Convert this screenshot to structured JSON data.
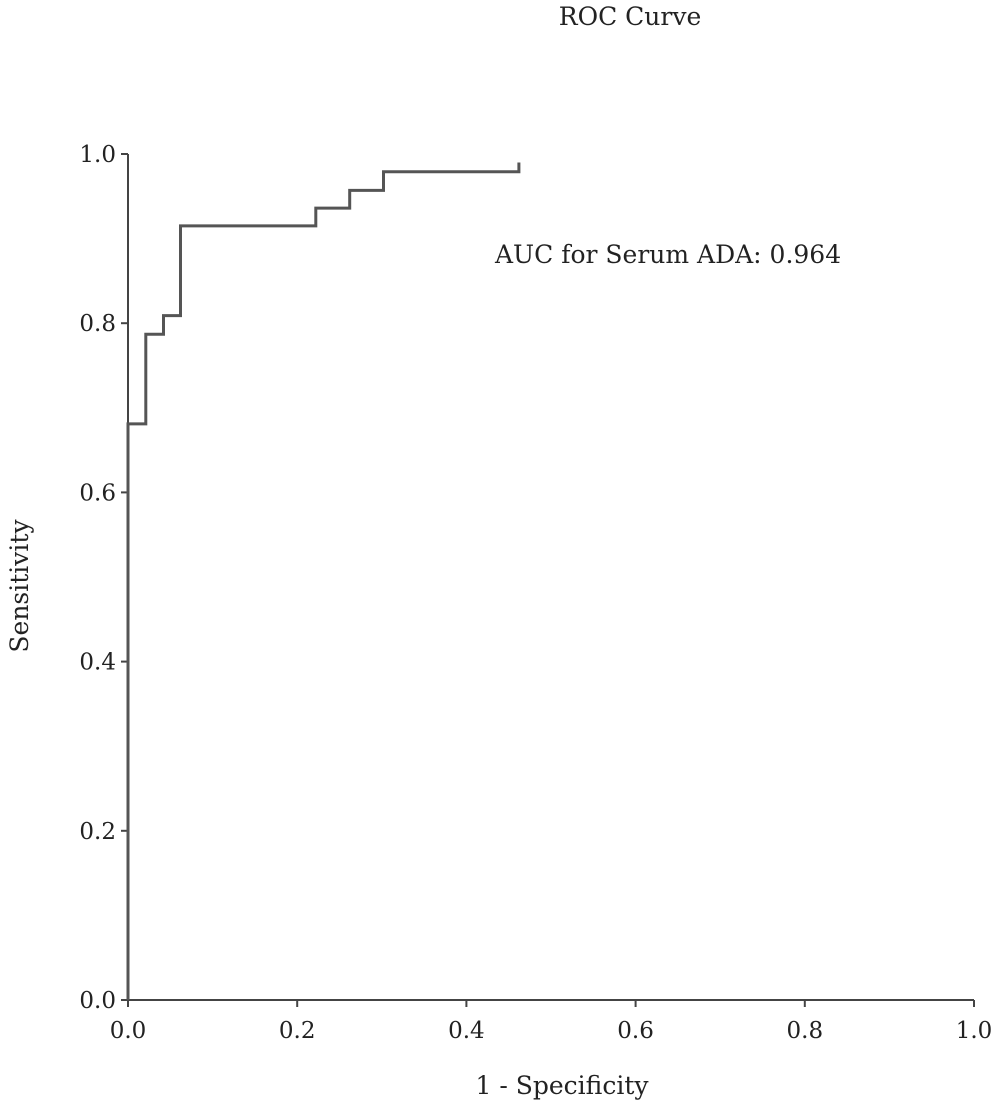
{
  "chart_data": {
    "type": "line",
    "title": "ROC Curve",
    "xlabel": "1 - Specificity",
    "ylabel": "Sensitivity",
    "xlim": [
      0,
      1
    ],
    "ylim": [
      0,
      1
    ],
    "x_ticks": [
      "0.0",
      "0.2",
      "0.4",
      "0.6",
      "0.8",
      "1.0"
    ],
    "y_ticks": [
      "0.0",
      "0.2",
      "0.4",
      "0.6",
      "0.8",
      "1.0"
    ],
    "grid": false,
    "legend": "none",
    "annotation": "AUC for Serum ADA: 0.964",
    "series": [
      {
        "step": true,
        "color": "#555555",
        "points": [
          [
            0.0,
            0.0
          ],
          [
            0.0,
            0.681
          ],
          [
            0.021,
            0.681
          ],
          [
            0.021,
            0.787
          ],
          [
            0.042,
            0.787
          ],
          [
            0.042,
            0.809
          ],
          [
            0.062,
            0.809
          ],
          [
            0.062,
            0.915
          ],
          [
            0.222,
            0.915
          ],
          [
            0.222,
            0.936
          ],
          [
            0.262,
            0.936
          ],
          [
            0.262,
            0.957
          ],
          [
            0.302,
            0.957
          ],
          [
            0.302,
            0.979
          ],
          [
            0.462,
            0.979
          ],
          [
            0.462,
            0.99
          ]
        ]
      }
    ]
  }
}
